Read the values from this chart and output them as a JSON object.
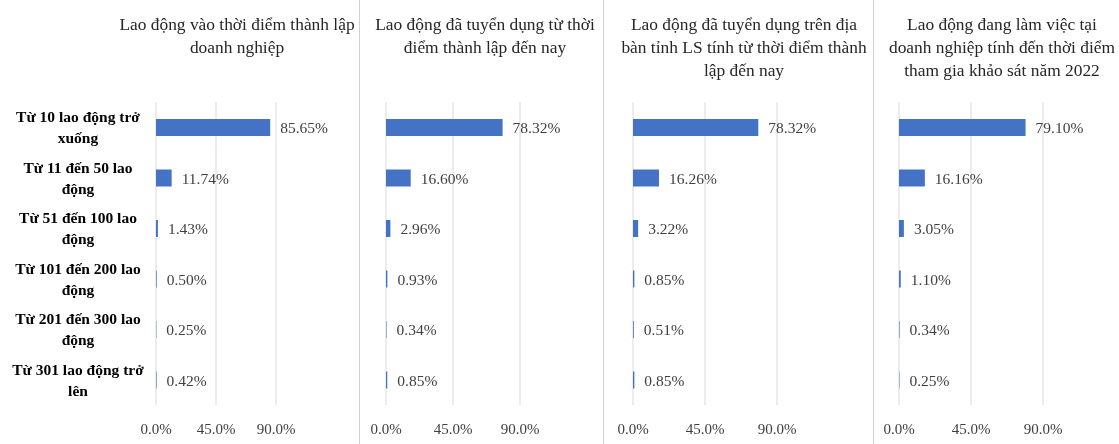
{
  "chart_data": [
    {
      "type": "bar",
      "orientation": "horizontal",
      "title": "Lao động vào thời điểm thành lập doanh nghiệp",
      "categories": [
        "Từ 10 lao động trở xuống",
        "Từ 11 đến 50 lao động",
        "Từ 51 đến 100 lao động",
        "Từ 101 đến 200 lao động",
        "Từ 201 đến 300 lao động",
        "Từ 301 lao động trở lên"
      ],
      "values": [
        85.65,
        11.74,
        1.43,
        0.5,
        0.25,
        0.42
      ],
      "value_labels": [
        "85.65%",
        "11.74%",
        "1.43%",
        "0.50%",
        "0.25%",
        "0.42%"
      ],
      "color": "#4472c4",
      "xlim": [
        0,
        90
      ],
      "xticks": [
        {
          "value": 0,
          "label": "0.0%"
        },
        {
          "value": 45,
          "label": "45.0%"
        },
        {
          "value": 90,
          "label": "90.0%"
        }
      ],
      "grid": "x"
    },
    {
      "type": "bar",
      "orientation": "horizontal",
      "title": "Lao động đã tuyển dụng từ thời điểm thành lập đến nay",
      "categories": [
        null,
        null,
        null,
        null,
        null,
        null
      ],
      "values": [
        78.32,
        16.6,
        2.96,
        0.93,
        0.34,
        0.85
      ],
      "value_labels": [
        "78.32%",
        "16.60%",
        "2.96%",
        "0.93%",
        "0.34%",
        "0.85%"
      ],
      "color": "#4472c4",
      "xlim": [
        0,
        90
      ],
      "xticks": [
        {
          "value": 0,
          "label": "0.0%"
        },
        {
          "value": 45,
          "label": "45.0%"
        },
        {
          "value": 90,
          "label": "90.0%"
        }
      ],
      "grid": "x"
    },
    {
      "type": "bar",
      "orientation": "horizontal",
      "title": "Lao động đã tuyển dụng trên địa bàn tỉnh LS tính từ thời điểm thành lập đến nay",
      "categories": [
        null,
        null,
        null,
        null,
        null,
        null
      ],
      "values": [
        78.32,
        16.26,
        3.22,
        0.85,
        0.51,
        0.85
      ],
      "value_labels": [
        "78.32%",
        "16.26%",
        "3.22%",
        "0.85%",
        "0.51%",
        "0.85%"
      ],
      "color": "#4472c4",
      "xlim": [
        0,
        90
      ],
      "xticks": [
        {
          "value": 0,
          "label": "0.0%"
        },
        {
          "value": 45,
          "label": "45.0%"
        },
        {
          "value": 90,
          "label": "90.0%"
        }
      ],
      "grid": "x"
    },
    {
      "type": "bar",
      "orientation": "horizontal",
      "title": "Lao động đang làm việc tại doanh nghiệp tính đến thời điểm tham gia khảo sát năm 2022",
      "categories": [
        null,
        null,
        null,
        null,
        null,
        null
      ],
      "values": [
        79.1,
        16.16,
        3.05,
        1.1,
        0.34,
        0.25
      ],
      "value_labels": [
        "79.10%",
        "16.16%",
        "3.05%",
        "1.10%",
        "0.34%",
        "0.25%"
      ],
      "color": "#4472c4",
      "xlim": [
        0,
        90
      ],
      "xticks": [
        {
          "value": 0,
          "label": "0.0%"
        },
        {
          "value": 45,
          "label": "45.0%"
        },
        {
          "value": 90,
          "label": "90.0%"
        }
      ],
      "grid": "x"
    }
  ]
}
